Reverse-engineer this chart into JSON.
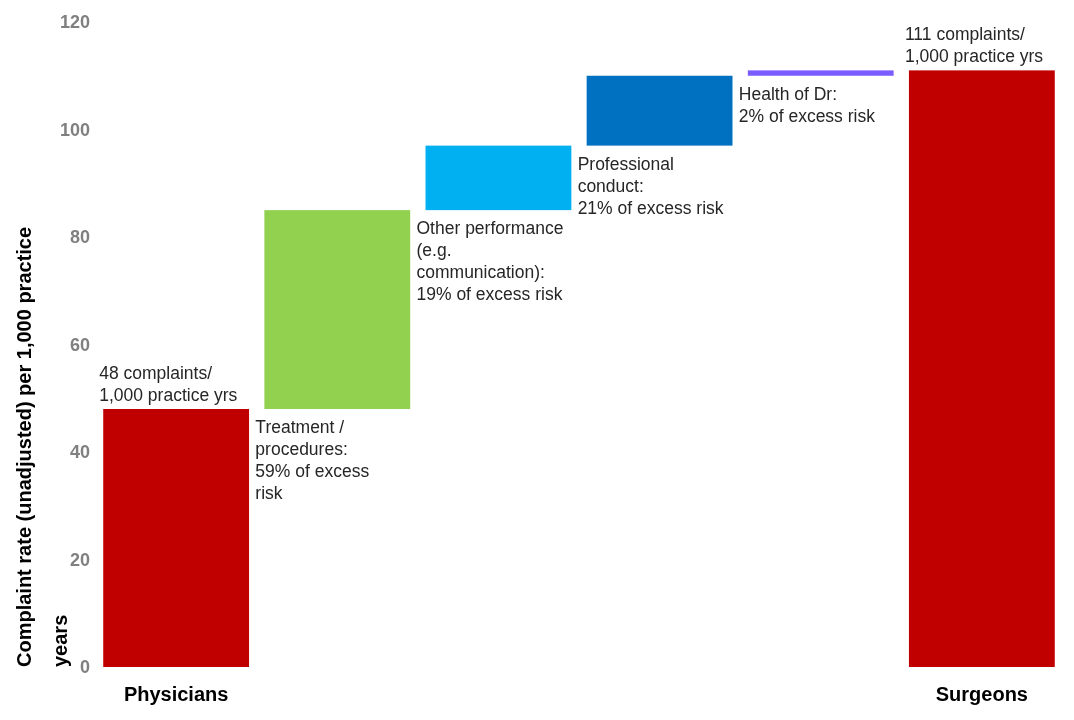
{
  "chart_data": {
    "type": "bar",
    "ylabel": "Complaint rate (unadjusted)  per 1,000 practice years",
    "categories": [
      "Physicians",
      null,
      null,
      null,
      null,
      "Surgeons"
    ],
    "values": [
      48,
      37,
      12,
      13,
      1,
      111
    ],
    "base": [
      null,
      48,
      85,
      97,
      110,
      null
    ],
    "colors": [
      "#c00000",
      "#92d050",
      "#00b0f0",
      "#0070c0",
      "#7b5cff",
      "#c00000"
    ],
    "value_labels": [
      "48 complaints/\n1,000 practice yrs",
      null,
      null,
      null,
      null,
      "111 complaints/\n1,000 practice yrs"
    ],
    "annotations": [
      "Treatment /\nprocedures:\n59% of excess\nrisk",
      "Other performance\n(e.g.\ncommunication):\n19% of excess risk",
      "Professional\nconduct:\n21% of excess risk",
      "Health of Dr:\n2% of excess risk"
    ],
    "ylim": [
      0,
      120
    ],
    "yticks": [
      0,
      20,
      40,
      60,
      80,
      100,
      120
    ],
    "grid": false
  }
}
